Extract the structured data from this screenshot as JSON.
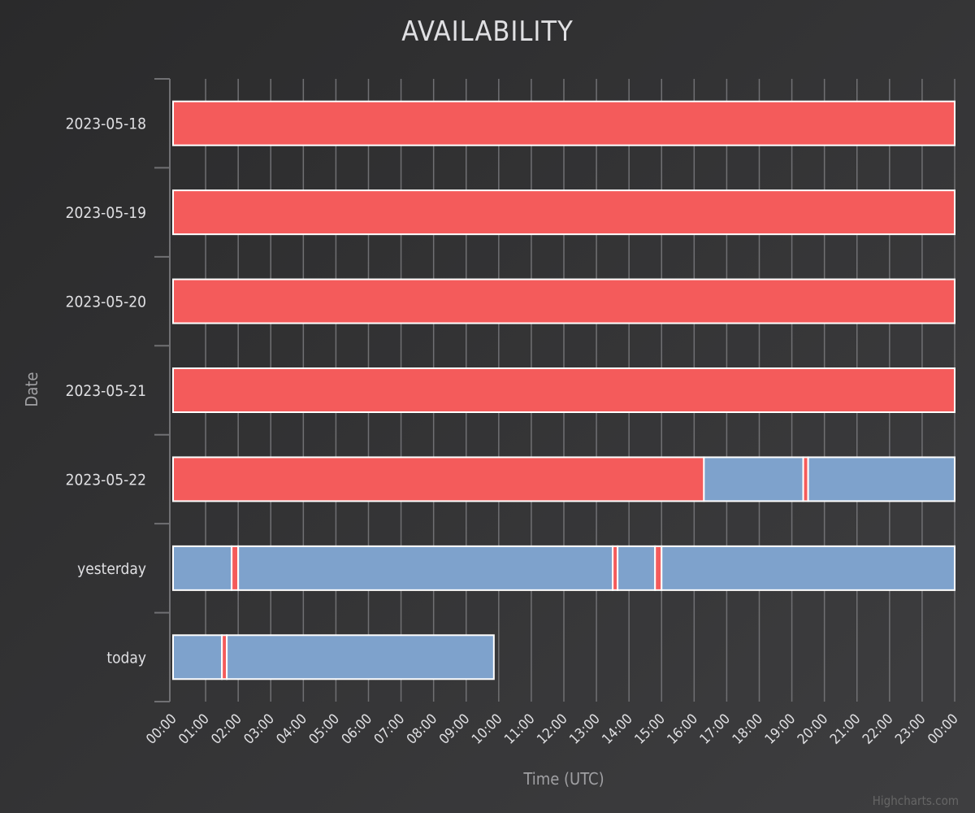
{
  "chart_data": {
    "type": "bar",
    "subtype": "timeline",
    "title": "AVAILABILITY",
    "xlabel": "Time (UTC)",
    "ylabel": "Date",
    "credits": "Highcharts.com",
    "x_unit": "hours",
    "xlim": [
      0,
      24
    ],
    "x_ticks": [
      "00:00",
      "01:00",
      "02:00",
      "03:00",
      "04:00",
      "05:00",
      "06:00",
      "07:00",
      "08:00",
      "09:00",
      "10:00",
      "11:00",
      "12:00",
      "13:00",
      "14:00",
      "15:00",
      "16:00",
      "17:00",
      "18:00",
      "19:00",
      "20:00",
      "21:00",
      "22:00",
      "23:00",
      "00:00"
    ],
    "grid": true,
    "colors": {
      "down": "#f45b5b",
      "up": "#7ea2cc",
      "bar_border": "#ffffff",
      "grid": "#707073",
      "axis": "#707073"
    },
    "categories": [
      "2023-05-18",
      "2023-05-19",
      "2023-05-20",
      "2023-05-21",
      "2023-05-22",
      "yesterday",
      "today"
    ],
    "rows": [
      {
        "category": "2023-05-18",
        "segments": [
          {
            "start": 0,
            "end": 24,
            "status": "down"
          }
        ]
      },
      {
        "category": "2023-05-19",
        "segments": [
          {
            "start": 0,
            "end": 24,
            "status": "down"
          }
        ]
      },
      {
        "category": "2023-05-20",
        "segments": [
          {
            "start": 0,
            "end": 24,
            "status": "down"
          }
        ]
      },
      {
        "category": "2023-05-21",
        "segments": [
          {
            "start": 0,
            "end": 24,
            "status": "down"
          }
        ]
      },
      {
        "category": "2023-05-22",
        "segments": [
          {
            "start": 0,
            "end": 16.3,
            "status": "down"
          },
          {
            "start": 16.3,
            "end": 19.35,
            "status": "up"
          },
          {
            "start": 19.35,
            "end": 19.5,
            "status": "down"
          },
          {
            "start": 19.5,
            "end": 24,
            "status": "up"
          }
        ]
      },
      {
        "category": "yesterday",
        "segments": [
          {
            "start": 0,
            "end": 1.8,
            "status": "up"
          },
          {
            "start": 1.8,
            "end": 2.0,
            "status": "down"
          },
          {
            "start": 2.0,
            "end": 13.5,
            "status": "up"
          },
          {
            "start": 13.5,
            "end": 13.65,
            "status": "down"
          },
          {
            "start": 13.65,
            "end": 14.8,
            "status": "up"
          },
          {
            "start": 14.8,
            "end": 15.0,
            "status": "down"
          },
          {
            "start": 15.0,
            "end": 24,
            "status": "up"
          }
        ]
      },
      {
        "category": "today",
        "segments": [
          {
            "start": 0,
            "end": 1.5,
            "status": "up"
          },
          {
            "start": 1.5,
            "end": 1.65,
            "status": "down"
          },
          {
            "start": 1.65,
            "end": 9.85,
            "status": "up"
          }
        ]
      }
    ]
  }
}
